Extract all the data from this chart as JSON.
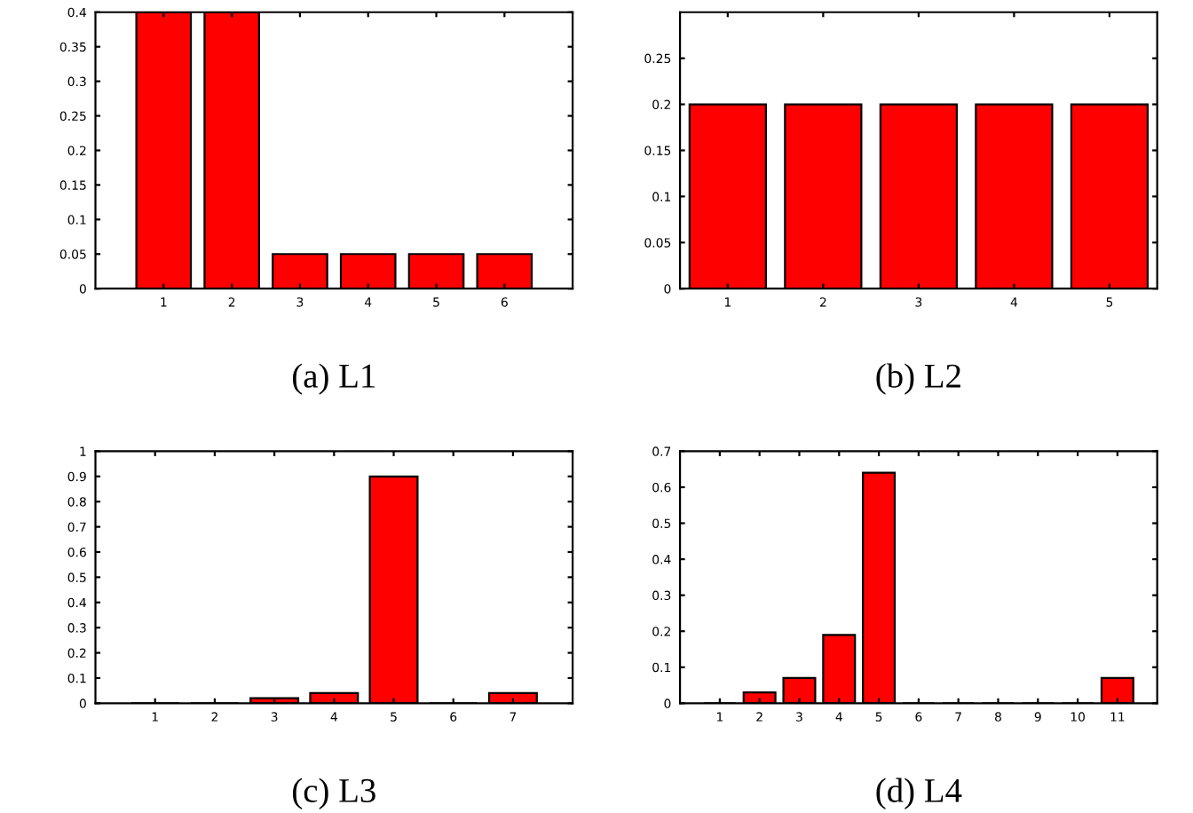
{
  "chart_data": [
    {
      "type": "bar",
      "xlabel": "(a) L1",
      "x": [
        1,
        2,
        3,
        4,
        5,
        6
      ],
      "values": [
        0.4,
        0.4,
        0.05,
        0.05,
        0.05,
        0.05
      ],
      "color": "#ff0000",
      "xlim": [
        0,
        7
      ],
      "xticks": [
        1,
        2,
        3,
        4,
        5,
        6
      ],
      "ylim": [
        0,
        0.4
      ],
      "yticks": [
        0,
        0.05,
        0.1,
        0.15,
        0.2,
        0.25,
        0.3,
        0.35,
        0.4
      ],
      "grid": false,
      "legend": false
    },
    {
      "type": "bar",
      "xlabel": "(b) L2",
      "x": [
        1,
        2,
        3,
        4,
        5
      ],
      "values": [
        0.2,
        0.2,
        0.2,
        0.2,
        0.2
      ],
      "color": "#ff0000",
      "xlim": [
        0.5,
        5.5
      ],
      "xticks": [
        1,
        2,
        3,
        4,
        5
      ],
      "ylim": [
        0,
        0.3
      ],
      "yticks": [
        0,
        0.05,
        0.1,
        0.15,
        0.2,
        0.25
      ],
      "grid": false,
      "legend": false
    },
    {
      "type": "bar",
      "xlabel": "(c) L3",
      "x": [
        1,
        2,
        3,
        4,
        5,
        6,
        7
      ],
      "values": [
        0,
        0,
        0.02,
        0.04,
        0.9,
        0,
        0.04
      ],
      "color": "#ff0000",
      "xlim": [
        0,
        8
      ],
      "xticks": [
        1,
        2,
        3,
        4,
        5,
        6,
        7
      ],
      "ylim": [
        0,
        1
      ],
      "yticks": [
        0,
        0.1,
        0.2,
        0.3,
        0.4,
        0.5,
        0.6,
        0.7,
        0.8,
        0.9,
        1
      ],
      "grid": false,
      "legend": false
    },
    {
      "type": "bar",
      "xlabel": "(d) L4",
      "x": [
        1,
        2,
        3,
        4,
        5,
        6,
        7,
        8,
        9,
        10,
        11
      ],
      "values": [
        0,
        0.03,
        0.07,
        0.19,
        0.64,
        0,
        0,
        0,
        0,
        0,
        0.07
      ],
      "color": "#ff0000",
      "xlim": [
        0,
        12
      ],
      "xticks": [
        1,
        2,
        3,
        4,
        5,
        6,
        7,
        8,
        9,
        10,
        11
      ],
      "ylim": [
        0,
        0.7
      ],
      "yticks": [
        0,
        0.1,
        0.2,
        0.3,
        0.4,
        0.5,
        0.6,
        0.7
      ],
      "grid": false,
      "legend": false
    }
  ]
}
